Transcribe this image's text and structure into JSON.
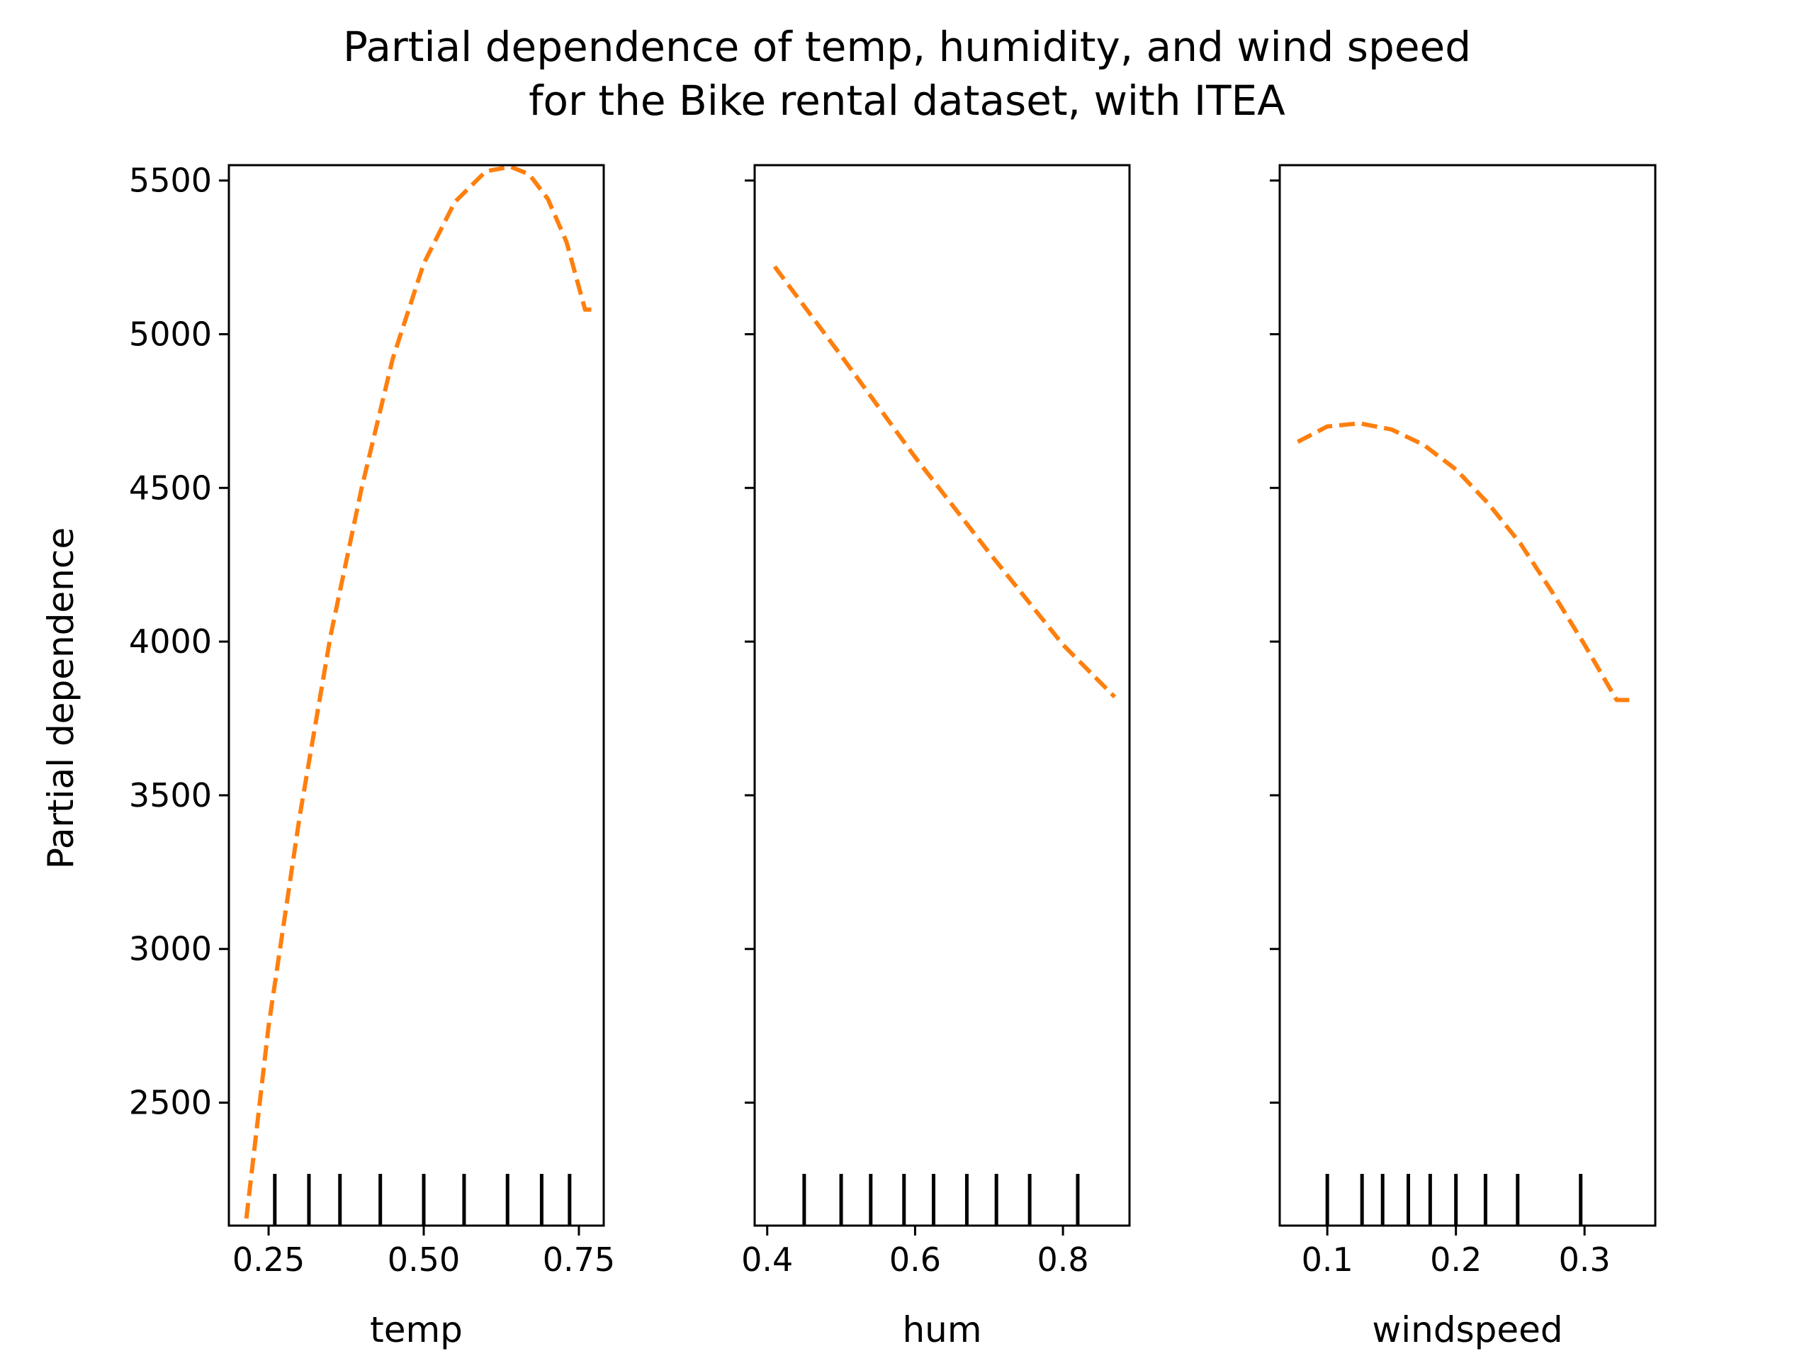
{
  "chart_data": {
    "type": "line",
    "title": "Partial dependence of temp, humidity, and wind speed\nfor the Bike rental dataset, with ITEA",
    "title_lines": [
      "Partial dependence of temp, humidity, and wind speed",
      "for the Bike rental dataset, with ITEA"
    ],
    "ylabel": "Partial dependence",
    "ylim": [
      2100,
      5550
    ],
    "yticks": [
      2500,
      3000,
      3500,
      4000,
      4500,
      5000,
      5500
    ],
    "ytick_labels": [
      "2500",
      "3000",
      "3500",
      "4000",
      "4500",
      "5000",
      "5500"
    ],
    "line_color": "#ff7f0e",
    "line_style": "dashed",
    "grid": false,
    "legend": "none",
    "panels": [
      {
        "xlabel": "temp",
        "xlim": [
          0.186,
          0.79
        ],
        "xticks": [
          0.25,
          0.5,
          0.75
        ],
        "xtick_labels": [
          "0.25",
          "0.50",
          "0.75"
        ],
        "deciles": [
          0.26,
          0.315,
          0.365,
          0.43,
          0.5,
          0.565,
          0.635,
          0.69,
          0.735
        ],
        "x": [
          0.21,
          0.25,
          0.3,
          0.35,
          0.4,
          0.45,
          0.5,
          0.55,
          0.6,
          0.64,
          0.67,
          0.7,
          0.73,
          0.76,
          0.77
        ],
        "y": [
          2050,
          2750,
          3430,
          4020,
          4500,
          4920,
          5230,
          5430,
          5530,
          5545,
          5520,
          5440,
          5300,
          5080,
          5080
        ]
      },
      {
        "xlabel": "hum",
        "xlim": [
          0.383,
          0.89
        ],
        "xticks": [
          0.4,
          0.6,
          0.8
        ],
        "xtick_labels": [
          "0.4",
          "0.6",
          "0.8"
        ],
        "deciles": [
          0.45,
          0.5,
          0.54,
          0.585,
          0.625,
          0.67,
          0.71,
          0.755,
          0.82
        ],
        "x": [
          0.41,
          0.5,
          0.6,
          0.7,
          0.8,
          0.87
        ],
        "y": [
          5220,
          4930,
          4600,
          4290,
          3990,
          3820
        ]
      },
      {
        "xlabel": "windspeed",
        "xlim": [
          0.063,
          0.355
        ],
        "xticks": [
          0.1,
          0.2,
          0.3
        ],
        "xtick_labels": [
          "0.1",
          "0.2",
          "0.3"
        ],
        "deciles": [
          0.1,
          0.127,
          0.143,
          0.163,
          0.18,
          0.2,
          0.223,
          0.248,
          0.297
        ],
        "x": [
          0.077,
          0.1,
          0.125,
          0.15,
          0.175,
          0.2,
          0.225,
          0.25,
          0.275,
          0.3,
          0.325,
          0.34
        ],
        "y": [
          4650,
          4700,
          4710,
          4690,
          4640,
          4560,
          4450,
          4320,
          4160,
          3990,
          3810,
          3810
        ]
      }
    ]
  }
}
